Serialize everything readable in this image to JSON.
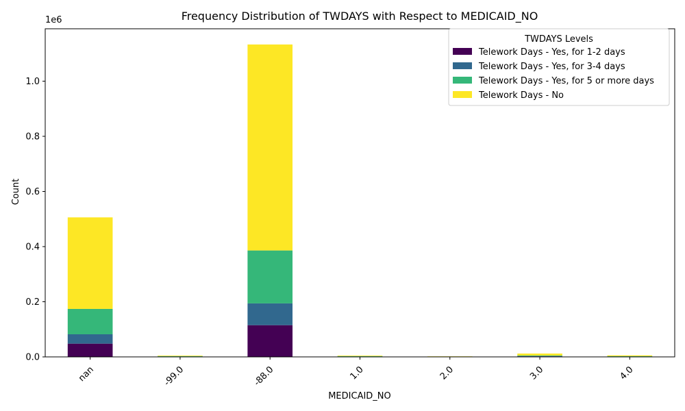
{
  "chart_data": {
    "type": "bar",
    "stacked": true,
    "title": "Frequency Distribution of TWDAYS with Respect to MEDICAID_NO",
    "xlabel": "MEDICAID_NO",
    "ylabel": "Count",
    "y_offset_label": "1e6",
    "ylim": [
      0,
      1.19
    ],
    "y_ticks": [
      "0.0",
      "0.2",
      "0.4",
      "0.6",
      "0.8",
      "1.0"
    ],
    "categories": [
      "nan",
      "-99.0",
      "-88.0",
      "1.0",
      "2.0",
      "3.0",
      "4.0"
    ],
    "legend_title": "TWDAYS Levels",
    "legend_position": "top-right",
    "series": [
      {
        "name": "Telework Days - Yes, for 1-2 days",
        "color": "#440154",
        "values": [
          0.048,
          0.001,
          0.115,
          0.001,
          0.0005,
          0.002,
          0.001
        ]
      },
      {
        "name": "Telework Days - Yes, for 3-4 days",
        "color": "#31688e",
        "values": [
          0.034,
          0.0005,
          0.079,
          0.0005,
          0.0003,
          0.001,
          0.0005
        ]
      },
      {
        "name": "Telework Days - Yes, for 5 or more days",
        "color": "#35b779",
        "values": [
          0.092,
          0.001,
          0.192,
          0.001,
          0.0005,
          0.002,
          0.001
        ]
      },
      {
        "name": "Telework Days - No",
        "color": "#fde725",
        "values": [
          0.332,
          0.002,
          0.747,
          0.002,
          0.0007,
          0.007,
          0.003
        ]
      }
    ]
  }
}
